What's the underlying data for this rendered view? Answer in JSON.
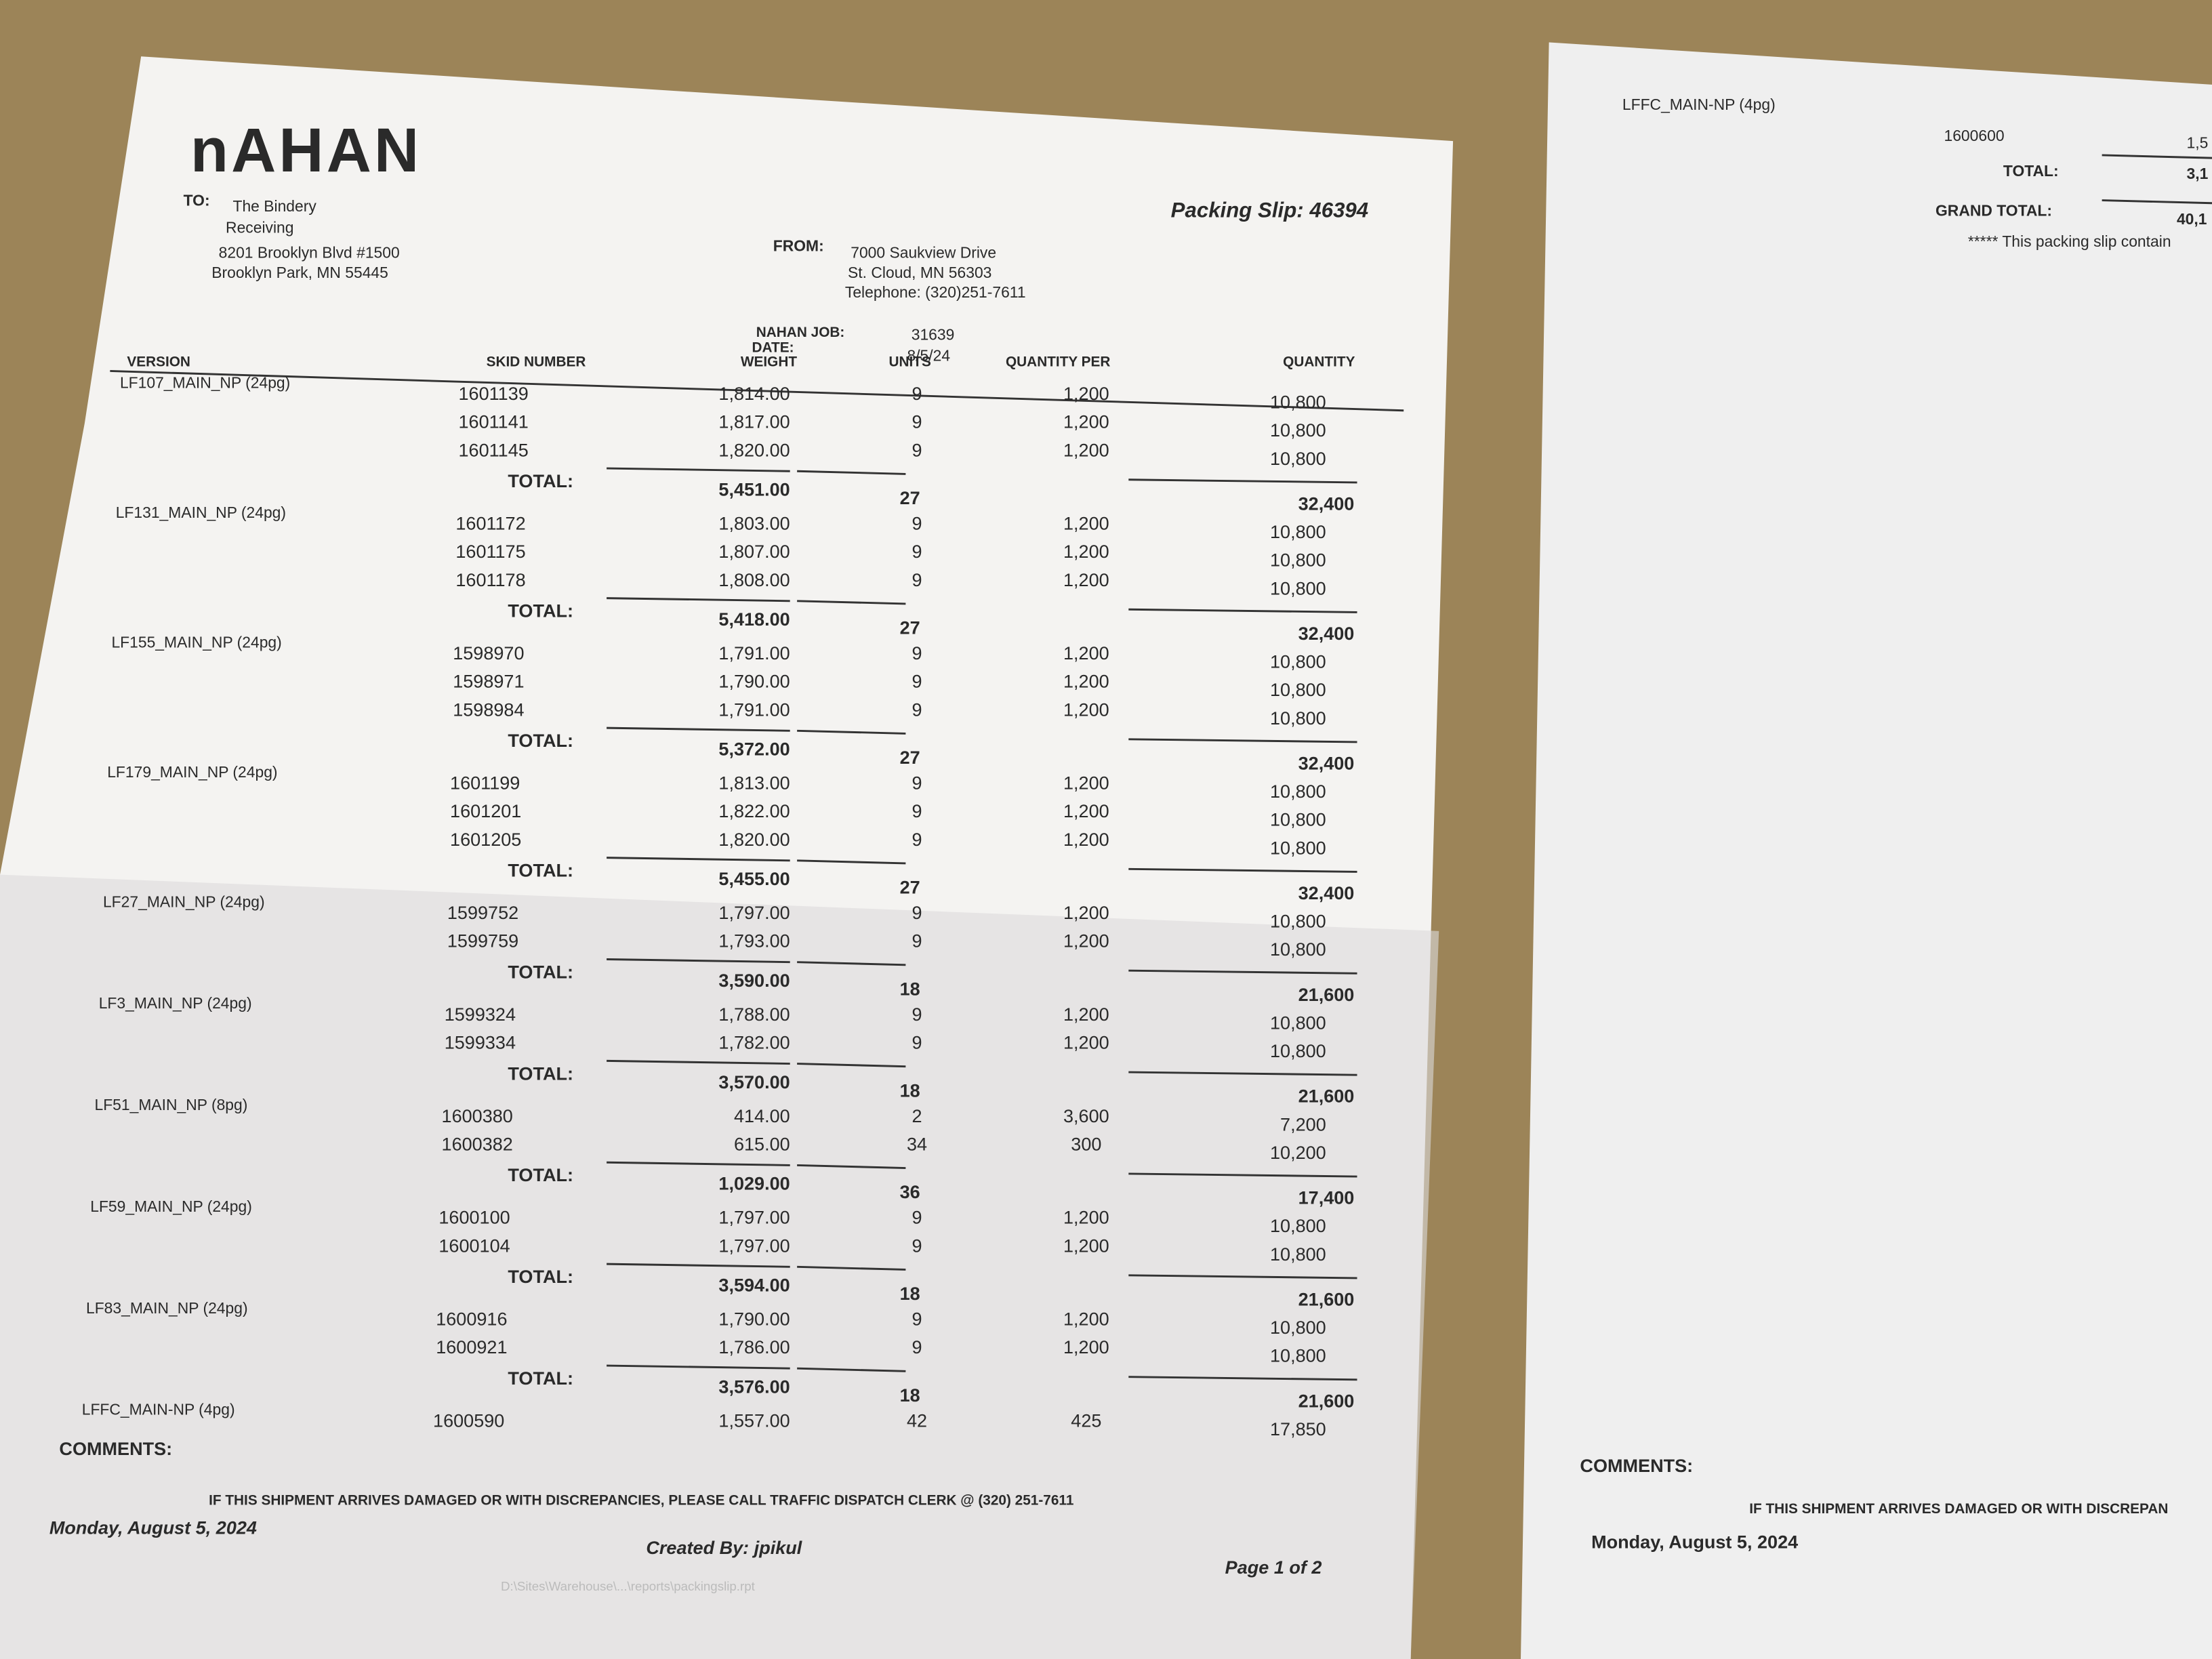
{
  "left_page": {
    "logo": "nAHAN",
    "title": "Packing Slip: 46394",
    "to": {
      "label": "TO:",
      "lines": [
        "The Bindery",
        "Receiving",
        "8201 Brooklyn Blvd #1500",
        "Brooklyn Park, MN 55445"
      ]
    },
    "from": {
      "label": "FROM:",
      "lines": [
        "7000 Saukview Drive",
        "St. Cloud, MN 56303",
        "Telephone: (320)251-7611"
      ]
    },
    "job": {
      "label": "NAHAN JOB:",
      "value": "31639"
    },
    "date": {
      "label": "DATE:",
      "value": "8/5/24"
    },
    "table": {
      "columns": [
        "VERSION",
        "SKID NUMBER",
        "WEIGHT",
        "UNITS",
        "QUANTITY PER",
        "QUANTITY"
      ],
      "groups": [
        {
          "version": "LF107_MAIN_NP (24pg)",
          "rows": [
            {
              "skid": "1601139",
              "weight": "1,814.00",
              "units": "9",
              "qty_per": "1,200",
              "quantity": "10,800"
            },
            {
              "skid": "1601141",
              "weight": "1,817.00",
              "units": "9",
              "qty_per": "1,200",
              "quantity": "10,800"
            },
            {
              "skid": "1601145",
              "weight": "1,820.00",
              "units": "9",
              "qty_per": "1,200",
              "quantity": "10,800"
            }
          ],
          "total": {
            "label": "TOTAL:",
            "weight": "5,451.00",
            "units": "27",
            "quantity": "32,400"
          }
        },
        {
          "version": "LF131_MAIN_NP (24pg)",
          "rows": [
            {
              "skid": "1601172",
              "weight": "1,803.00",
              "units": "9",
              "qty_per": "1,200",
              "quantity": "10,800"
            },
            {
              "skid": "1601175",
              "weight": "1,807.00",
              "units": "9",
              "qty_per": "1,200",
              "quantity": "10,800"
            },
            {
              "skid": "1601178",
              "weight": "1,808.00",
              "units": "9",
              "qty_per": "1,200",
              "quantity": "10,800"
            }
          ],
          "total": {
            "label": "TOTAL:",
            "weight": "5,418.00",
            "units": "27",
            "quantity": "32,400"
          }
        },
        {
          "version": "LF155_MAIN_NP (24pg)",
          "rows": [
            {
              "skid": "1598970",
              "weight": "1,791.00",
              "units": "9",
              "qty_per": "1,200",
              "quantity": "10,800"
            },
            {
              "skid": "1598971",
              "weight": "1,790.00",
              "units": "9",
              "qty_per": "1,200",
              "quantity": "10,800"
            },
            {
              "skid": "1598984",
              "weight": "1,791.00",
              "units": "9",
              "qty_per": "1,200",
              "quantity": "10,800"
            }
          ],
          "total": {
            "label": "TOTAL:",
            "weight": "5,372.00",
            "units": "27",
            "quantity": "32,400"
          }
        },
        {
          "version": "LF179_MAIN_NP (24pg)",
          "rows": [
            {
              "skid": "1601199",
              "weight": "1,813.00",
              "units": "9",
              "qty_per": "1,200",
              "quantity": "10,800"
            },
            {
              "skid": "1601201",
              "weight": "1,822.00",
              "units": "9",
              "qty_per": "1,200",
              "quantity": "10,800"
            },
            {
              "skid": "1601205",
              "weight": "1,820.00",
              "units": "9",
              "qty_per": "1,200",
              "quantity": "10,800"
            }
          ],
          "total": {
            "label": "TOTAL:",
            "weight": "5,455.00",
            "units": "27",
            "quantity": "32,400"
          }
        },
        {
          "version": "LF27_MAIN_NP (24pg)",
          "rows": [
            {
              "skid": "1599752",
              "weight": "1,797.00",
              "units": "9",
              "qty_per": "1,200",
              "quantity": "10,800"
            },
            {
              "skid": "1599759",
              "weight": "1,793.00",
              "units": "9",
              "qty_per": "1,200",
              "quantity": "10,800"
            }
          ],
          "total": {
            "label": "TOTAL:",
            "weight": "3,590.00",
            "units": "18",
            "quantity": "21,600"
          }
        },
        {
          "version": "LF3_MAIN_NP (24pg)",
          "rows": [
            {
              "skid": "1599324",
              "weight": "1,788.00",
              "units": "9",
              "qty_per": "1,200",
              "quantity": "10,800"
            },
            {
              "skid": "1599334",
              "weight": "1,782.00",
              "units": "9",
              "qty_per": "1,200",
              "quantity": "10,800"
            }
          ],
          "total": {
            "label": "TOTAL:",
            "weight": "3,570.00",
            "units": "18",
            "quantity": "21,600"
          }
        },
        {
          "version": "LF51_MAIN_NP (8pg)",
          "rows": [
            {
              "skid": "1600380",
              "weight": "414.00",
              "units": "2",
              "qty_per": "3,600",
              "quantity": "7,200"
            },
            {
              "skid": "1600382",
              "weight": "615.00",
              "units": "34",
              "qty_per": "300",
              "quantity": "10,200"
            }
          ],
          "total": {
            "label": "TOTAL:",
            "weight": "1,029.00",
            "units": "36",
            "quantity": "17,400"
          }
        },
        {
          "version": "LF59_MAIN_NP (24pg)",
          "rows": [
            {
              "skid": "1600100",
              "weight": "1,797.00",
              "units": "9",
              "qty_per": "1,200",
              "quantity": "10,800"
            },
            {
              "skid": "1600104",
              "weight": "1,797.00",
              "units": "9",
              "qty_per": "1,200",
              "quantity": "10,800"
            }
          ],
          "total": {
            "label": "TOTAL:",
            "weight": "3,594.00",
            "units": "18",
            "quantity": "21,600"
          }
        },
        {
          "version": "LF83_MAIN_NP (24pg)",
          "rows": [
            {
              "skid": "1600916",
              "weight": "1,790.00",
              "units": "9",
              "qty_per": "1,200",
              "quantity": "10,800"
            },
            {
              "skid": "1600921",
              "weight": "1,786.00",
              "units": "9",
              "qty_per": "1,200",
              "quantity": "10,800"
            }
          ],
          "total": {
            "label": "TOTAL:",
            "weight": "3,576.00",
            "units": "18",
            "quantity": "21,600"
          }
        },
        {
          "version": "LFFC_MAIN-NP (4pg)",
          "rows": [
            {
              "skid": "1600590",
              "weight": "1,557.00",
              "units": "42",
              "qty_per": "425",
              "quantity": "17,850"
            }
          ]
        }
      ]
    },
    "comments_label": "COMMENTS:",
    "notice": "IF THIS SHIPMENT ARRIVES DAMAGED OR WITH DISCREPANCIES, PLEASE CALL TRAFFIC DISPATCH CLERK @ (320) 251-7611",
    "print_date": "Monday, August 5, 2024",
    "created_by": "Created By: jpikul",
    "page": "Page 1 of 2",
    "file_path": "D:\\Sites\\Warehouse\\...\\reports\\packingslip.rpt"
  },
  "right_page": {
    "version": "LFFC_MAIN-NP (4pg)",
    "skid": "1600600",
    "weight_partial": "1,5",
    "total_label": "TOTAL:",
    "total_partial": "3,1",
    "grand_total_label": "GRAND TOTAL:",
    "grand_total_partial": "40,1",
    "note_partial": "***** This packing slip contain",
    "comments_label": "COMMENTS:",
    "notice_partial": "IF THIS SHIPMENT ARRIVES DAMAGED OR WITH DISCREPAN",
    "print_date": "Monday, August 5, 2024"
  }
}
